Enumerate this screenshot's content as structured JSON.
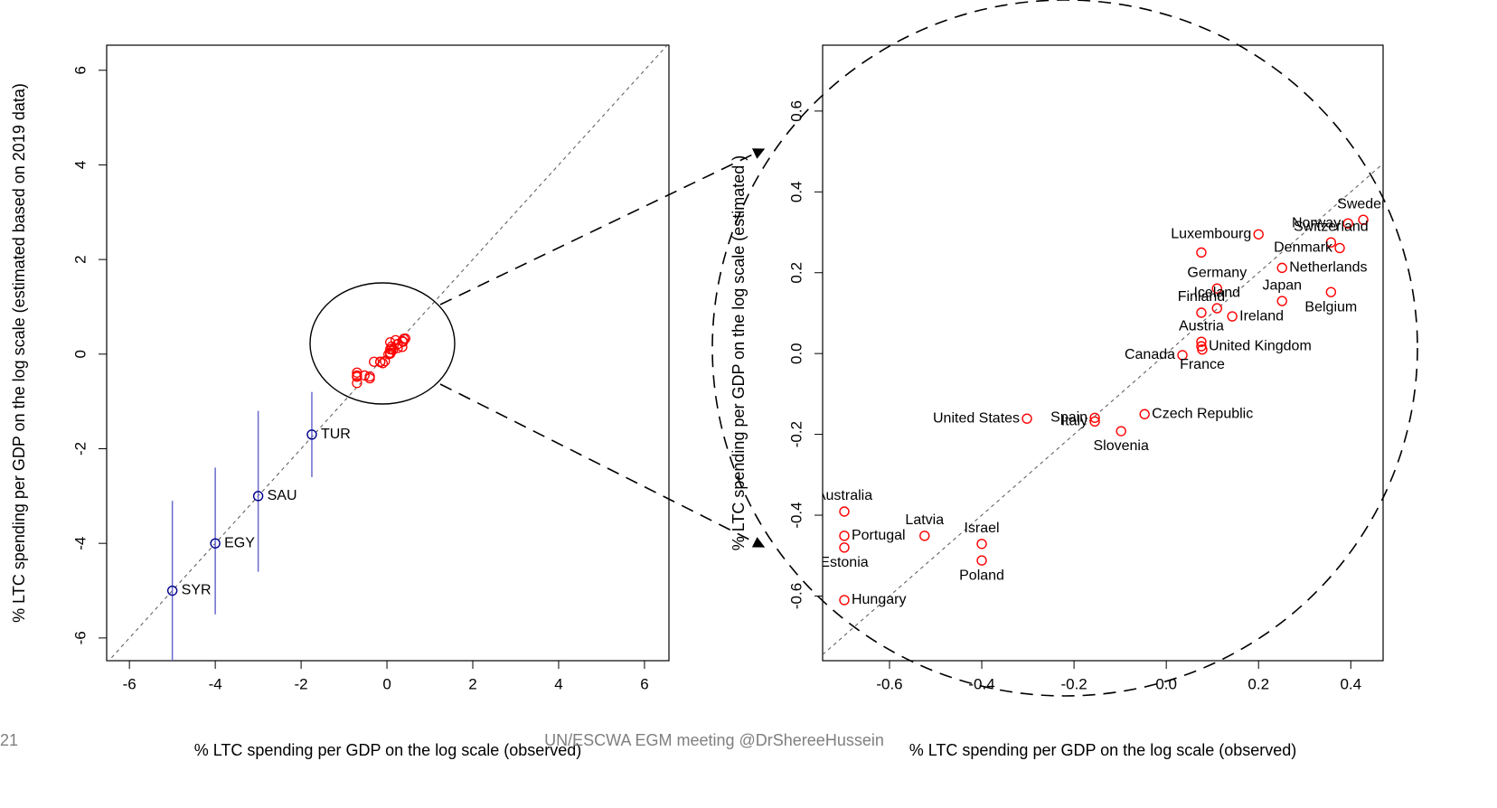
{
  "chart_data": [
    {
      "type": "scatter",
      "xlabel": "% LTC spending per GDP on the log scale (observed)",
      "ylabel": "% LTC spending per GDP on the log scale (estimated based on 2019 data)",
      "xlim": [
        -6.53,
        6.57
      ],
      "ylim": [
        -6.48,
        6.53
      ],
      "xticks": [
        -6,
        -4,
        -2,
        0,
        2,
        4,
        6
      ],
      "yticks": [
        -6,
        -4,
        -2,
        0,
        2,
        4,
        6
      ],
      "color": "#00008b",
      "bar_color": "#6a6acd",
      "labels": [
        "TUR",
        "SAU",
        "EGY",
        "SYR"
      ],
      "x": [
        -1.75,
        -3,
        -4,
        -5
      ],
      "y": [
        -1.7,
        -3,
        -4,
        -5
      ],
      "y_low": [
        -2.6,
        -4.6,
        -5.5,
        -7
      ],
      "y_high": [
        -0.8,
        -1.2,
        -2.4,
        -3.1
      ]
    },
    {
      "type": "scatter",
      "xlabel": "% LTC spending per GDP on the log scale (observed)",
      "ylabel": "% LTC spending per GDP on the log scale (estimated )",
      "xlim": [
        -0.745,
        0.47
      ],
      "ylim": [
        -0.76,
        0.763
      ],
      "xticks": [
        -0.6,
        -0.4,
        -0.2,
        {
          "value": 0,
          "label": "0.0"
        },
        0.2,
        0.4
      ],
      "yticks": [
        -0.6,
        -0.4,
        -0.2,
        {
          "value": 0,
          "label": "0.0"
        },
        0.2,
        0.4,
        0.6
      ],
      "color": "#ff0000",
      "labels": [
        "Sweden",
        "Norway",
        "Switzerland",
        "Denmark",
        "Netherlands",
        "Luxembourg",
        null,
        "Germany",
        "Japan",
        "Belgium",
        "Finland",
        "Iceland",
        "Ireland",
        "Austria",
        "United Kingdom",
        "Canada",
        "France",
        "United States",
        "Spain",
        "Italy",
        "Slovenia",
        "Czech Republic",
        "Australia",
        "Portugal",
        "Estonia",
        "Hungary",
        "Latvia",
        "Israel",
        "Poland"
      ],
      "x": [
        0.427,
        0.394,
        0.357,
        0.376,
        0.251,
        0.2,
        0.076,
        0.11,
        0.251,
        0.357,
        0.076,
        0.11,
        0.143,
        0.076,
        0.076,
        0.035,
        0.078,
        -0.302,
        -0.155,
        -0.155,
        -0.098,
        -0.047,
        -0.698,
        -0.698,
        -0.698,
        -0.698,
        -0.524,
        -0.4,
        -0.4
      ],
      "y": [
        0.331,
        0.322,
        0.275,
        0.261,
        0.212,
        0.295,
        0.25,
        0.161,
        0.13,
        0.152,
        0.101,
        0.112,
        0.092,
        0.029,
        0.018,
        -0.004,
        0.01,
        -0.161,
        -0.159,
        -0.168,
        -0.192,
        -0.15,
        -0.391,
        -0.451,
        -0.48,
        -0.61,
        -0.451,
        -0.471,
        -0.512
      ]
    }
  ],
  "footer": {
    "page": "21",
    "text": "UN/ESCWA EGM meeting @DrShereeHussein"
  }
}
